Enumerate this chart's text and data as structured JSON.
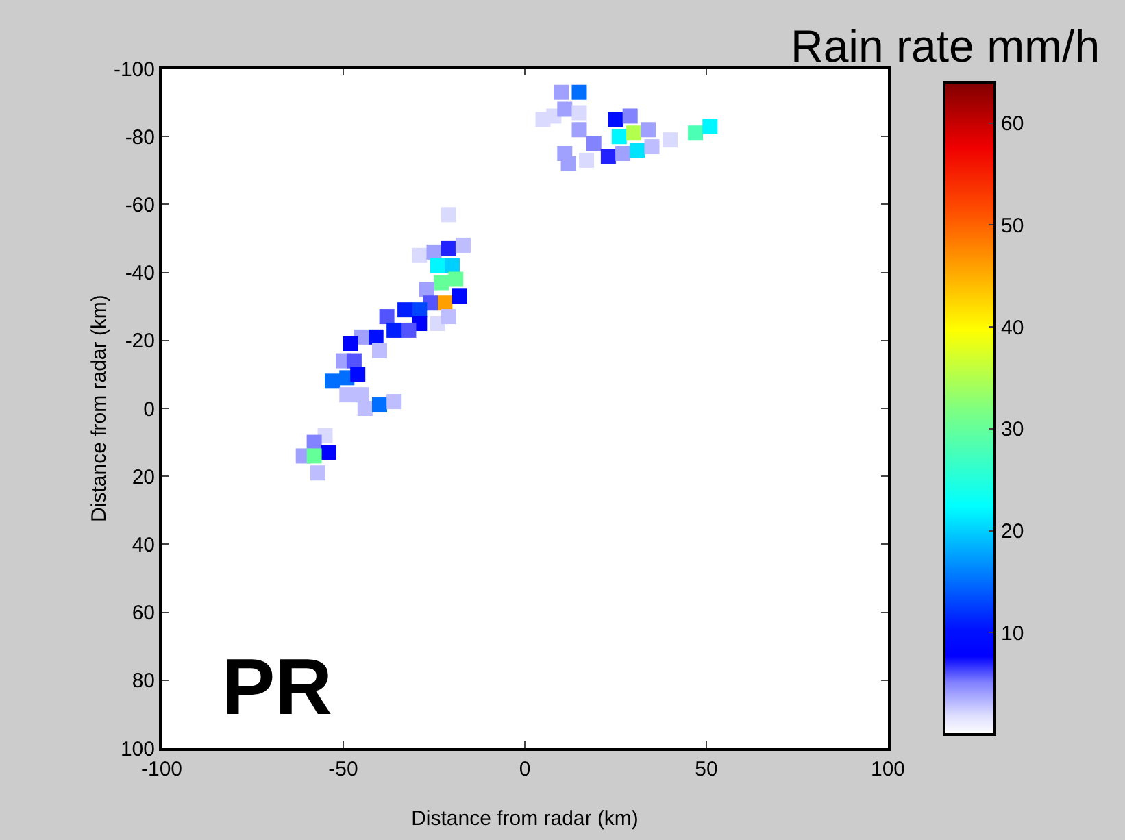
{
  "chart_data": {
    "type": "scatter",
    "xlabel": "Distance from radar (km)",
    "ylabel": "Distance from radar (km)",
    "clabel": "Rain rate mm/h",
    "annotations": [
      "PR"
    ],
    "xlim": [
      -100,
      100
    ],
    "xticks": [
      -100,
      -50,
      0,
      50,
      100
    ],
    "ylim": [
      100,
      -100
    ],
    "yticks": [
      -100,
      -80,
      -60,
      -40,
      -20,
      0,
      20,
      40,
      60,
      80,
      100
    ],
    "clim": [
      0,
      64
    ],
    "cticks": [
      10,
      20,
      30,
      40,
      50,
      60
    ],
    "marker": "square",
    "grid": false,
    "legend": false,
    "x": [
      15,
      5,
      8,
      10,
      11,
      15,
      15,
      11,
      12,
      19,
      17,
      25,
      29,
      26,
      30,
      34,
      23,
      27,
      31,
      35,
      40,
      47,
      51,
      -21,
      -29,
      -25,
      -21,
      -17,
      -24,
      -20,
      -23,
      -19,
      -27,
      -22,
      -18,
      -26,
      -29,
      -33,
      -38,
      -24,
      -21,
      -29,
      -32,
      -36,
      -41,
      -45,
      -48,
      -40,
      -50,
      -47,
      -53,
      -49,
      -46,
      -49,
      -45,
      -44,
      -40,
      -36,
      -55,
      -58,
      -54,
      -61,
      -58,
      -57
    ],
    "values": [
      -93,
      -85,
      -86,
      -93,
      -88,
      -87,
      -82,
      -75,
      -72,
      -78,
      -73,
      -85,
      -86,
      -80,
      -81,
      -82,
      -74,
      -75,
      -76,
      -77,
      -79,
      -81,
      -83,
      -57,
      -45,
      -46,
      -47,
      -48,
      -42,
      -42,
      -37,
      -38,
      -35,
      -31,
      -33,
      -31,
      -29,
      -29,
      -27,
      -25,
      -27,
      -25,
      -23,
      -23,
      -21,
      -21,
      -19,
      -17,
      -14,
      -14,
      -8,
      -9,
      -10,
      -4,
      -4,
      0,
      -1,
      -2,
      8,
      10,
      13,
      14,
      14,
      19
    ],
    "cvalues": [
      15,
      2,
      2,
      4,
      4,
      2,
      4,
      4,
      4,
      5,
      2,
      10,
      5,
      22,
      35,
      4,
      7,
      4,
      21,
      3,
      2,
      28,
      22,
      2,
      2,
      4,
      7,
      3,
      22,
      20,
      30,
      30,
      4,
      46,
      9,
      6,
      13,
      11,
      6,
      2,
      3,
      8,
      6,
      11,
      10,
      4,
      8,
      3,
      4,
      6,
      15,
      15,
      9,
      3,
      3,
      3,
      15,
      3,
      2,
      5,
      8,
      4,
      30,
      3
    ]
  }
}
